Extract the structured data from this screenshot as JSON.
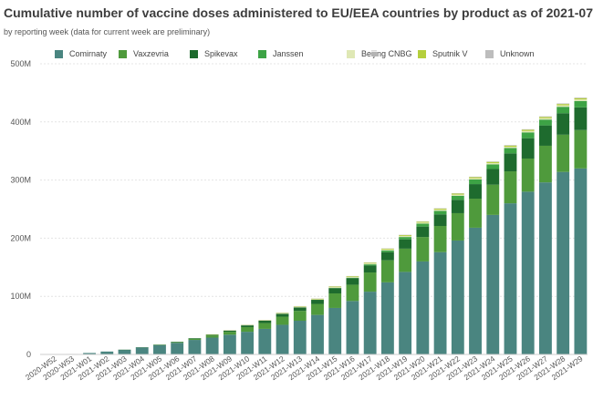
{
  "header": {
    "title": "Cumulative number of vaccine doses administered to EU/EEA countries by product as of 2021-07-26",
    "subtitle": "by reporting week (data for current week are preliminary)"
  },
  "chart_data": {
    "type": "bar",
    "stacked": true,
    "grid": true,
    "legend_position": "top",
    "title": "Cumulative number of vaccine doses administered to EU/EEA countries by product as of 2021-07-26",
    "subtitle": "by reporting week (data for current week are preliminary)",
    "xlabel": "",
    "ylabel": "",
    "ylim": [
      0,
      500
    ],
    "y_unit": "M",
    "y_ticks": [
      "0",
      "100M",
      "200M",
      "300M",
      "400M",
      "500M"
    ],
    "categories": [
      "2020-W52",
      "2020-W53",
      "2021-W01",
      "2021-W02",
      "2021-W03",
      "2021-W04",
      "2021-W05",
      "2021-W06",
      "2021-W07",
      "2021-W08",
      "2021-W09",
      "2021-W10",
      "2021-W11",
      "2021-W12",
      "2021-W13",
      "2021-W14",
      "2021-W15",
      "2021-W16",
      "2021-W17",
      "2021-W18",
      "2021-W19",
      "2021-W20",
      "2021-W21",
      "2021-W22",
      "2021-W23",
      "2021-W24",
      "2021-W25",
      "2021-W26",
      "2021-W27",
      "2021-W28",
      "2021-W29"
    ],
    "series": [
      {
        "name": "Comirnaty",
        "color": "#4a8580",
        "values": [
          0.2,
          0.8,
          2.5,
          5,
          8,
          12,
          16,
          20,
          25,
          29,
          34,
          39,
          44,
          51,
          58,
          68,
          80,
          92,
          108,
          124,
          142,
          160,
          176,
          196,
          218,
          240,
          260,
          280,
          296,
          314,
          320
        ]
      },
      {
        "name": "Vaxzevria",
        "color": "#4f9a3c",
        "values": [
          0,
          0,
          0,
          0,
          0,
          0,
          0.5,
          1,
          2,
          3.5,
          5,
          8,
          10,
          14,
          17,
          19,
          25,
          28,
          33,
          38,
          40,
          42,
          45,
          47,
          50,
          52,
          55,
          57,
          63,
          64,
          66
        ]
      },
      {
        "name": "Spikevax",
        "color": "#1e6b2e",
        "values": [
          0,
          0,
          0,
          0,
          0.1,
          0.2,
          0.5,
          0.8,
          1,
          1.5,
          2,
          3,
          4,
          5,
          6,
          7,
          9,
          11,
          12,
          14,
          16,
          18,
          20,
          23,
          25,
          27,
          31,
          35,
          35,
          37,
          39
        ]
      },
      {
        "name": "Janssen",
        "color": "#3da345",
        "values": [
          0,
          0,
          0,
          0,
          0,
          0,
          0,
          0,
          0,
          0,
          0,
          0,
          0,
          0,
          0,
          0,
          0.5,
          1,
          2,
          3,
          4,
          5,
          6,
          7,
          8,
          8,
          9,
          10,
          10,
          11,
          11
        ]
      },
      {
        "name": "Beijing CNBG",
        "color": "#dfe8b5",
        "values": [
          0,
          0,
          0,
          0,
          0,
          0,
          0,
          0,
          0,
          0.2,
          0.3,
          0.5,
          0.6,
          0.8,
          1,
          1,
          1.2,
          1.3,
          1.5,
          1.6,
          1.7,
          1.8,
          2,
          2,
          2.1,
          2.2,
          2.3,
          2.4,
          2.5,
          2.6,
          2.7
        ]
      },
      {
        "name": "Sputnik V",
        "color": "#b5cf3c",
        "values": [
          0,
          0,
          0,
          0,
          0,
          0,
          0,
          0,
          0,
          0.2,
          0.3,
          0.5,
          0.6,
          0.8,
          0.9,
          1,
          1.1,
          1.2,
          1.3,
          1.4,
          1.5,
          1.6,
          1.7,
          1.8,
          1.9,
          2,
          2,
          2.1,
          2.1,
          2.2,
          2.2
        ]
      },
      {
        "name": "Unknown",
        "color": "#bdbdbd",
        "values": [
          0,
          0,
          0,
          0,
          0,
          0,
          0,
          0,
          0,
          0,
          0.1,
          0.1,
          0.2,
          0.2,
          0.3,
          0.3,
          0.4,
          0.4,
          0.5,
          0.5,
          0.6,
          0.6,
          0.7,
          0.7,
          0.8,
          0.8,
          0.9,
          0.9,
          1,
          1,
          1
        ]
      }
    ]
  }
}
